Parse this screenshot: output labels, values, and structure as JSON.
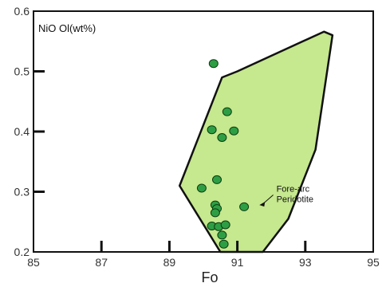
{
  "chart_data": {
    "type": "scatter",
    "title": "",
    "xlabel": "Fo",
    "ylabel": "NiO Ol(wt%)",
    "xlim": [
      85,
      95
    ],
    "ylim": [
      0.2,
      0.6
    ],
    "x_ticks": [
      85,
      87,
      89,
      91,
      93,
      95
    ],
    "x_tick_labels": [
      "85",
      "87",
      "89",
      "91",
      "93",
      "95"
    ],
    "y_ticks": [
      0.2,
      0.3,
      0.4,
      0.5,
      0.6
    ],
    "y_tick_labels": [
      "0.2",
      "0.3",
      "0.4",
      "0.5",
      "0.6"
    ],
    "grid": false,
    "field": {
      "label": "Fore-arc Peridotite",
      "label_lines": [
        "Fore-arc",
        "Peridotite"
      ],
      "fill_color": "#c6e88e",
      "outline_color": "#111111",
      "polygon": [
        [
          90.5,
          0.2
        ],
        [
          89.3,
          0.31
        ],
        [
          90.55,
          0.49
        ],
        [
          91.0,
          0.5
        ],
        [
          93.55,
          0.566
        ],
        [
          93.8,
          0.56
        ],
        [
          93.3,
          0.37
        ],
        [
          92.5,
          0.255
        ],
        [
          91.75,
          0.2
        ]
      ]
    },
    "series": [
      {
        "marker_color": "#2e9e44",
        "marker_edge": "#0b3d12",
        "points": [
          [
            90.3,
            0.513
          ],
          [
            90.7,
            0.433
          ],
          [
            90.25,
            0.403
          ],
          [
            90.9,
            0.401
          ],
          [
            90.55,
            0.39
          ],
          [
            90.4,
            0.32
          ],
          [
            89.95,
            0.306
          ],
          [
            90.35,
            0.278
          ],
          [
            90.4,
            0.272
          ],
          [
            91.2,
            0.275
          ],
          [
            90.35,
            0.265
          ],
          [
            90.25,
            0.243
          ],
          [
            90.45,
            0.242
          ],
          [
            90.65,
            0.245
          ],
          [
            90.55,
            0.228
          ],
          [
            90.6,
            0.213
          ]
        ]
      }
    ]
  }
}
